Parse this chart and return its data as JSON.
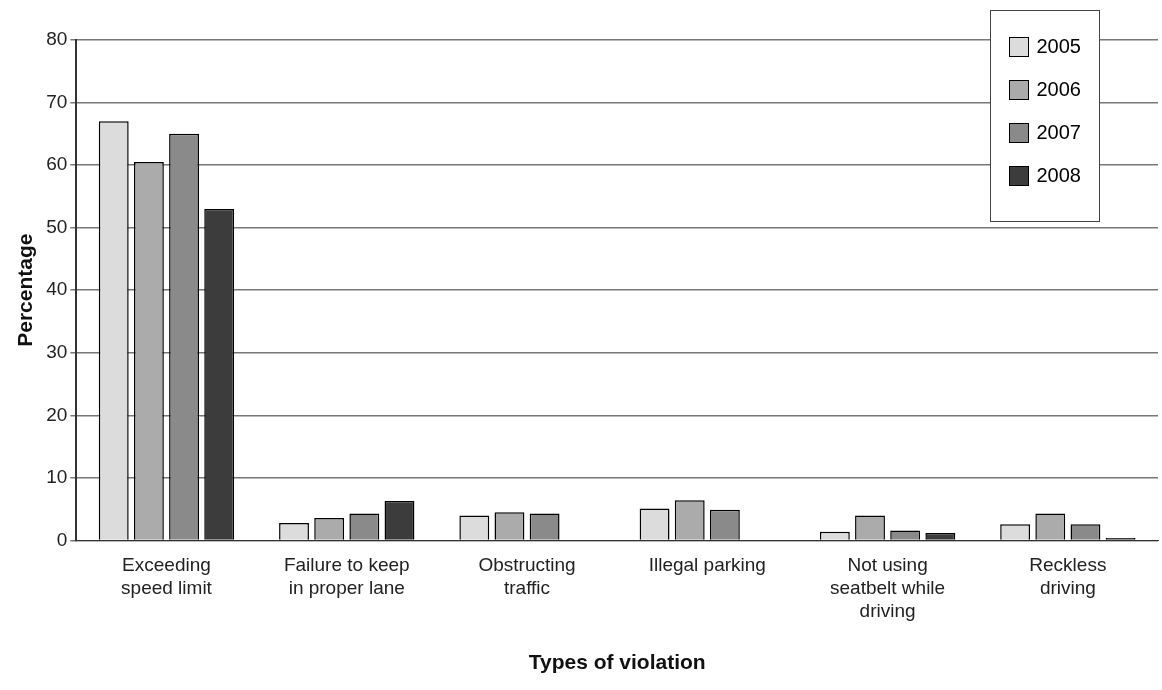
{
  "chart_data": {
    "type": "bar",
    "xlabel": "Types of violation",
    "ylabel": "Percentage",
    "categories": [
      "Exceeding speed limit",
      "Failure to keep in proper lane",
      "Obstructing traffic",
      "Illegal parking",
      "Not using seatbelt while driving",
      "Reckless driving"
    ],
    "series": [
      {
        "name": "2005",
        "color": "#dcdcdc",
        "values": [
          67,
          2.8,
          4.0,
          5.1,
          1.4,
          2.6
        ]
      },
      {
        "name": "2006",
        "color": "#ababab",
        "values": [
          60.5,
          3.6,
          4.5,
          6.4,
          4.0,
          4.3
        ]
      },
      {
        "name": "2007",
        "color": "#8a8a8a",
        "values": [
          65,
          4.3,
          4.3,
          4.9,
          1.6,
          2.6
        ]
      },
      {
        "name": "2008",
        "color": "#3c3c3c",
        "values": [
          53,
          6.3,
          0,
          0,
          1.2,
          0.4
        ]
      }
    ],
    "ylim": [
      0,
      80
    ],
    "yticks": [
      0,
      10,
      20,
      30,
      40,
      50,
      60,
      70,
      80
    ],
    "grid": "y",
    "legend": "top right"
  }
}
